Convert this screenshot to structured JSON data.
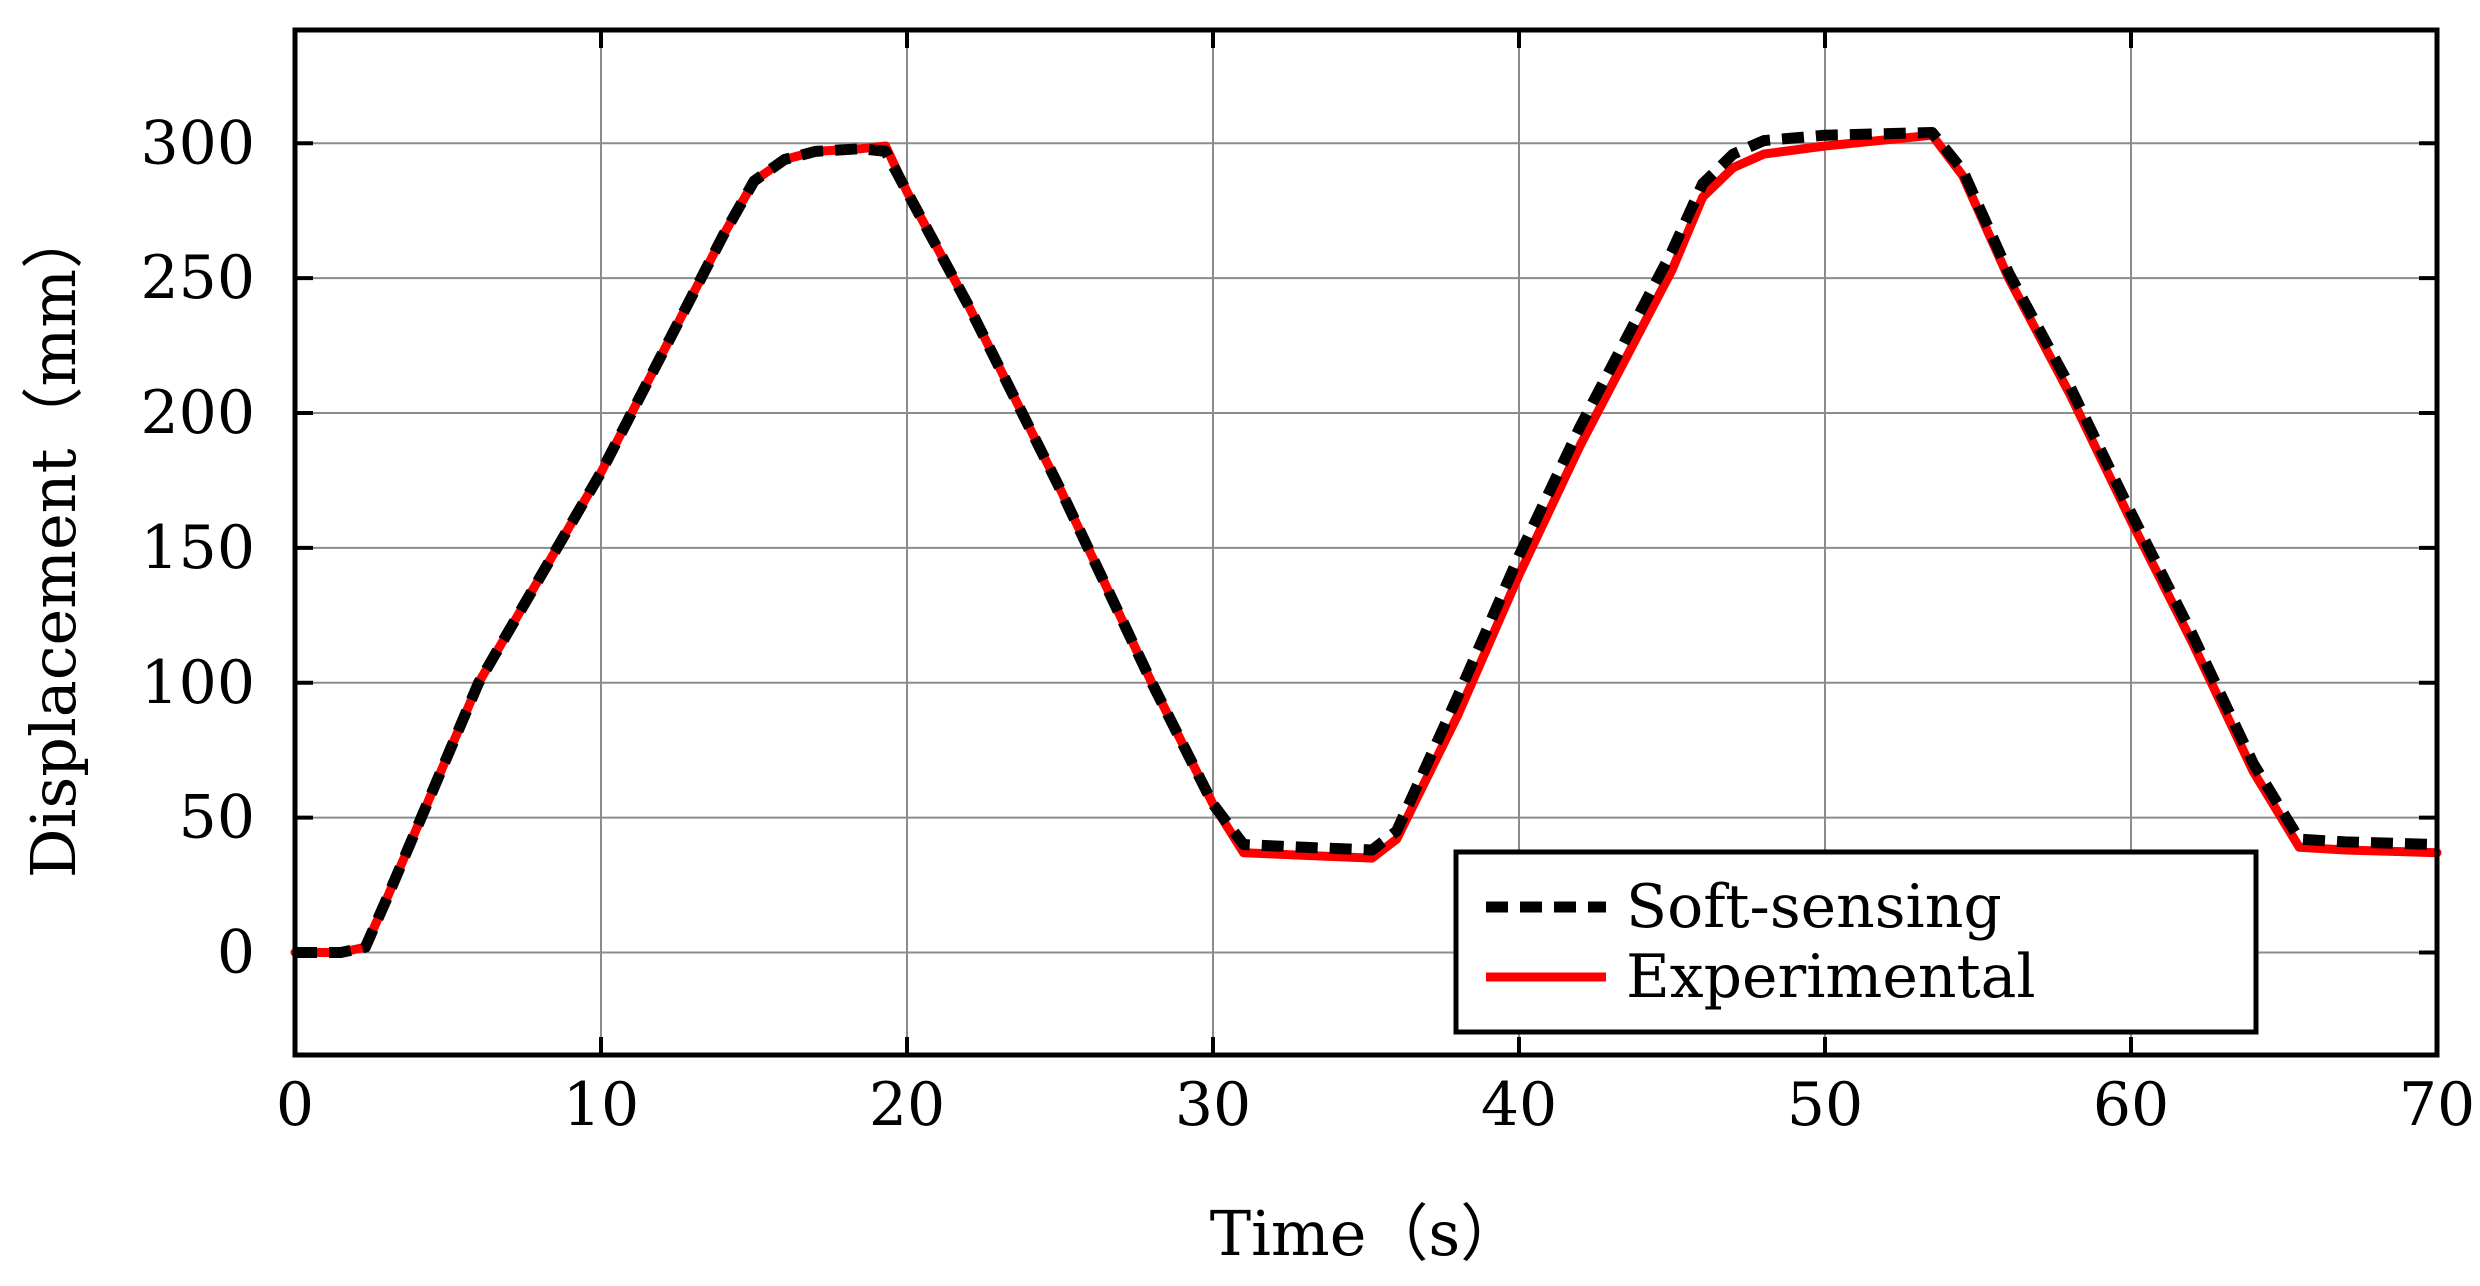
{
  "chart_data": {
    "type": "line",
    "title": "",
    "xlabel": "Time（s）",
    "ylabel": "Displacement（mm）",
    "xlim": [
      0,
      70
    ],
    "ylim": [
      -38,
      342
    ],
    "xticks": [
      0,
      10,
      20,
      30,
      40,
      50,
      60,
      70
    ],
    "yticks": [
      0,
      50,
      100,
      150,
      200,
      250,
      300
    ],
    "grid": true,
    "legend": {
      "position": "bottom-right"
    },
    "series": [
      {
        "name": "Soft-sensing",
        "color": "#000000",
        "style": "dashed",
        "x": [
          0,
          1.5,
          2.3,
          3,
          6,
          10,
          12,
          14,
          15,
          16,
          17,
          18.5,
          19.3,
          20,
          22,
          25,
          28,
          30,
          31,
          33,
          35.2,
          36,
          38,
          40,
          42,
          45,
          46,
          47,
          48,
          50,
          53.5,
          54.5,
          56,
          58,
          60,
          62,
          64,
          65.5,
          67,
          70
        ],
        "y": [
          0,
          0,
          2,
          20,
          100,
          178,
          222,
          266,
          286,
          294,
          297,
          298,
          297,
          282,
          240,
          172,
          100,
          55,
          40,
          39,
          38,
          45,
          95,
          147,
          195,
          260,
          285,
          296,
          301,
          303,
          304,
          290,
          252,
          210,
          163,
          118,
          70,
          42,
          41,
          40
        ]
      },
      {
        "name": "Experimental",
        "color": "#ff0000",
        "style": "solid",
        "x": [
          0,
          1.5,
          2.3,
          3,
          6,
          10,
          12,
          14,
          15,
          16,
          17,
          18.5,
          19.3,
          20,
          22,
          25,
          28,
          30,
          31,
          33,
          35.2,
          36,
          38,
          40,
          42,
          45,
          46,
          47,
          48,
          50,
          53.5,
          54.5,
          56,
          58,
          60,
          62,
          64,
          65.5,
          67,
          70
        ],
        "y": [
          0,
          0,
          2,
          20,
          100,
          178,
          222,
          266,
          286,
          294,
          297,
          298,
          299,
          282,
          240,
          172,
          100,
          55,
          37,
          36,
          35,
          42,
          88,
          140,
          188,
          253,
          280,
          291,
          296,
          299,
          303,
          288,
          250,
          207,
          160,
          115,
          67,
          39,
          38,
          37
        ]
      }
    ]
  }
}
